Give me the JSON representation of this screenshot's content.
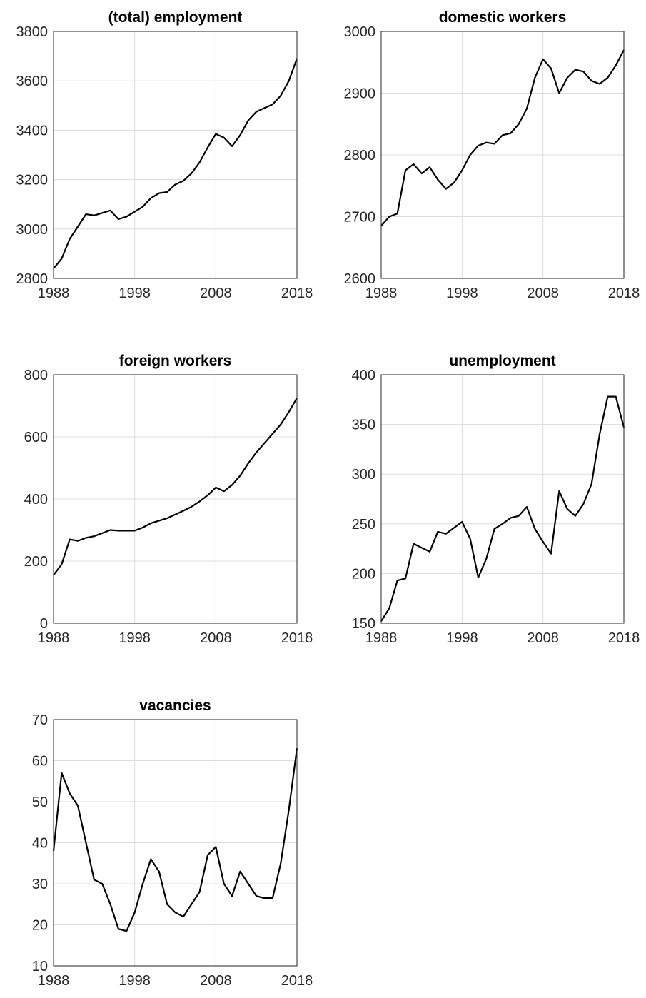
{
  "chart_data": [
    {
      "type": "line",
      "title": "(total) employment",
      "grid": true,
      "x": [
        1988,
        1989,
        1990,
        1991,
        1992,
        1993,
        1994,
        1995,
        1996,
        1997,
        1998,
        1999,
        2000,
        2001,
        2002,
        2003,
        2004,
        2005,
        2006,
        2007,
        2008,
        2009,
        2010,
        2011,
        2012,
        2013,
        2014,
        2015,
        2016,
        2017,
        2018
      ],
      "series": [
        {
          "name": "employment",
          "color": "#000000",
          "values": [
            2840,
            2880,
            2960,
            3010,
            3060,
            3055,
            3065,
            3075,
            3040,
            3050,
            3070,
            3090,
            3125,
            3145,
            3150,
            3180,
            3195,
            3225,
            3270,
            3330,
            3385,
            3370,
            3335,
            3380,
            3440,
            3475,
            3490,
            3505,
            3540,
            3600,
            3690
          ]
        }
      ],
      "xlim": [
        1988,
        2018
      ],
      "xticks": [
        1988,
        1998,
        2008,
        2018
      ],
      "ylim": [
        2800,
        3800
      ],
      "yticks": [
        2800,
        3000,
        3200,
        3400,
        3600,
        3800
      ]
    },
    {
      "type": "line",
      "title": "domestic workers",
      "grid": true,
      "x": [
        1988,
        1989,
        1990,
        1991,
        1992,
        1993,
        1994,
        1995,
        1996,
        1997,
        1998,
        1999,
        2000,
        2001,
        2002,
        2003,
        2004,
        2005,
        2006,
        2007,
        2008,
        2009,
        2010,
        2011,
        2012,
        2013,
        2014,
        2015,
        2016,
        2017,
        2018
      ],
      "series": [
        {
          "name": "domestic workers",
          "color": "#000000",
          "values": [
            2685,
            2700,
            2705,
            2775,
            2785,
            2770,
            2780,
            2760,
            2745,
            2755,
            2775,
            2800,
            2815,
            2820,
            2818,
            2832,
            2835,
            2850,
            2875,
            2925,
            2955,
            2940,
            2900,
            2925,
            2938,
            2935,
            2920,
            2915,
            2925,
            2945,
            2970
          ]
        }
      ],
      "xlim": [
        1988,
        2018
      ],
      "xticks": [
        1988,
        1998,
        2008,
        2018
      ],
      "ylim": [
        2600,
        3000
      ],
      "yticks": [
        2600,
        2700,
        2800,
        2900,
        3000
      ]
    },
    {
      "type": "line",
      "title": "foreign workers",
      "grid": true,
      "x": [
        1988,
        1989,
        1990,
        1991,
        1992,
        1993,
        1994,
        1995,
        1996,
        1997,
        1998,
        1999,
        2000,
        2001,
        2002,
        2003,
        2004,
        2005,
        2006,
        2007,
        2008,
        2009,
        2010,
        2011,
        2012,
        2013,
        2014,
        2015,
        2016,
        2017,
        2018
      ],
      "series": [
        {
          "name": "foreign workers",
          "color": "#000000",
          "values": [
            155,
            190,
            270,
            265,
            275,
            280,
            290,
            300,
            298,
            298,
            298,
            308,
            322,
            330,
            338,
            350,
            362,
            375,
            392,
            412,
            437,
            425,
            445,
            475,
            515,
            550,
            580,
            610,
            640,
            680,
            725
          ]
        }
      ],
      "xlim": [
        1988,
        2018
      ],
      "xticks": [
        1988,
        1998,
        2008,
        2018
      ],
      "ylim": [
        0,
        800
      ],
      "yticks": [
        0,
        200,
        400,
        600,
        800
      ]
    },
    {
      "type": "line",
      "title": "unemployment",
      "grid": true,
      "x": [
        1988,
        1989,
        1990,
        1991,
        1992,
        1993,
        1994,
        1995,
        1996,
        1997,
        1998,
        1999,
        2000,
        2001,
        2002,
        2003,
        2004,
        2005,
        2006,
        2007,
        2008,
        2009,
        2010,
        2011,
        2012,
        2013,
        2014,
        2015,
        2016,
        2017,
        2018
      ],
      "series": [
        {
          "name": "unemployment",
          "color": "#000000",
          "values": [
            152,
            165,
            193,
            195,
            230,
            226,
            222,
            242,
            240,
            246,
            252,
            235,
            196,
            215,
            245,
            250,
            256,
            258,
            267,
            245,
            232,
            220,
            283,
            265,
            258,
            270,
            290,
            340,
            378,
            378,
            347
          ]
        }
      ],
      "xlim": [
        1988,
        2018
      ],
      "xticks": [
        1988,
        1998,
        2008,
        2018
      ],
      "ylim": [
        150,
        400
      ],
      "yticks": [
        150,
        200,
        250,
        300,
        350,
        400
      ]
    },
    {
      "type": "line",
      "title": "vacancies",
      "grid": true,
      "x": [
        1988,
        1989,
        1990,
        1991,
        1992,
        1993,
        1994,
        1995,
        1996,
        1997,
        1998,
        1999,
        2000,
        2001,
        2002,
        2003,
        2004,
        2005,
        2006,
        2007,
        2008,
        2009,
        2010,
        2011,
        2012,
        2013,
        2014,
        2015,
        2016,
        2017,
        2018
      ],
      "series": [
        {
          "name": "vacancies",
          "color": "#000000",
          "values": [
            38,
            57,
            52,
            49,
            40,
            31,
            30,
            25,
            19,
            18.5,
            23,
            30,
            36,
            33,
            25,
            23,
            22,
            25,
            28,
            37,
            39,
            30,
            27,
            33,
            30,
            27,
            26.5,
            26.5,
            35,
            48,
            63
          ]
        }
      ],
      "xlim": [
        1988,
        2018
      ],
      "xticks": [
        1988,
        1998,
        2008,
        2018
      ],
      "ylim": [
        10,
        70
      ],
      "yticks": [
        10,
        20,
        30,
        40,
        50,
        60,
        70
      ]
    }
  ]
}
